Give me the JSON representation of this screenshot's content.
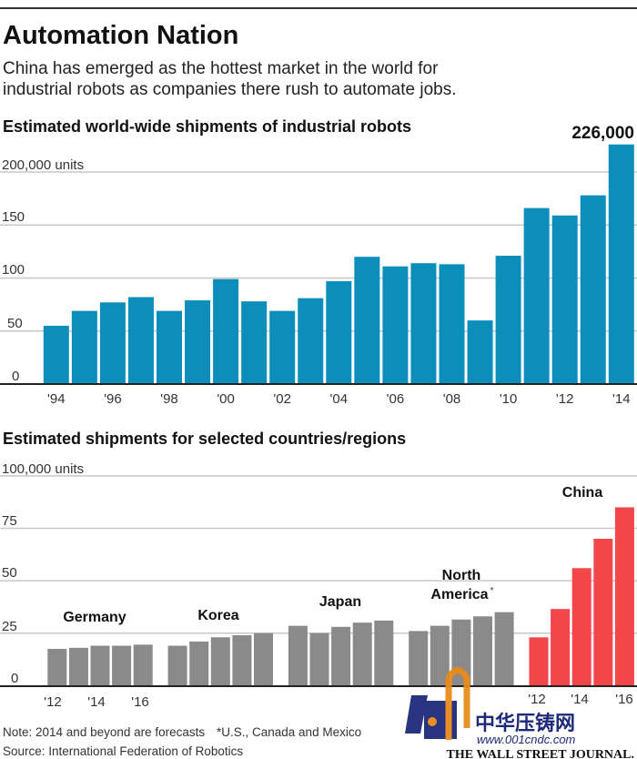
{
  "header": {
    "title": "Automation Nation",
    "subtitle_line1": "China has emerged as the hottest market in the world for",
    "subtitle_line2": "industrial robots as companies there rush to automate jobs."
  },
  "chart_data": [
    {
      "type": "bar",
      "title": "Estimated world-wide shipments of industrial robots",
      "ylabel": "200,000 units",
      "ylim": [
        0,
        226
      ],
      "yticks": [
        "0",
        "50",
        "100",
        "150"
      ],
      "ytick_values": [
        0,
        50,
        100,
        150,
        200
      ],
      "x": [
        "1994",
        "1995",
        "1996",
        "1997",
        "1998",
        "1999",
        "2000",
        "2001",
        "2002",
        "2003",
        "2004",
        "2005",
        "2006",
        "2007",
        "2008",
        "2009",
        "2010",
        "2011",
        "2012",
        "2013",
        "2014"
      ],
      "xtick_labels": [
        "'94",
        "'96",
        "'98",
        "'00",
        "'02",
        "'04",
        "'06",
        "'08",
        "'10",
        "'12",
        "'14"
      ],
      "values": [
        55,
        69,
        77,
        82,
        69,
        79,
        99,
        78,
        69,
        81,
        97,
        120,
        111,
        114,
        113,
        60,
        121,
        166,
        159,
        178,
        226
      ],
      "units": "thousand units",
      "annotation": "226,000",
      "color": "#0b8fba",
      "grid": true
    },
    {
      "type": "bar",
      "title": "Estimated shipments for selected countries/regions",
      "ylabel": "100,000 units",
      "ylim": [
        0,
        100
      ],
      "yticks": [
        "0",
        "25",
        "50",
        "75"
      ],
      "ytick_values": [
        0,
        25,
        50,
        75,
        100
      ],
      "x": [
        "2012",
        "2013",
        "2014",
        "2015",
        "2016"
      ],
      "xtick_labels": [
        "'12",
        "'14",
        "'16"
      ],
      "units": "thousand units",
      "series": [
        {
          "name": "Germany",
          "values": [
            17.5,
            18,
            19,
            19,
            19.5
          ],
          "color": "#8a8a8a"
        },
        {
          "name": "Korea",
          "values": [
            19,
            21,
            23,
            24,
            25
          ],
          "color": "#8a8a8a"
        },
        {
          "name": "Japan",
          "values": [
            28.5,
            25,
            28,
            30,
            31
          ],
          "color": "#8a8a8a"
        },
        {
          "name": "North America*",
          "name_line1": "North",
          "name_line2": "America",
          "asterisk": "*",
          "values": [
            26,
            28.5,
            31.5,
            33,
            35
          ],
          "color": "#8a8a8a"
        },
        {
          "name": "China",
          "values": [
            23,
            36.5,
            56,
            70,
            85
          ],
          "color": "#f2464b"
        }
      ],
      "grid": true
    }
  ],
  "footer": {
    "note": "Note: 2014 and beyond are forecasts",
    "footnote": "*U.S., Canada and Mexico",
    "source": "Source: International Federation of Robotics",
    "publisher": "THE WALL STREET JOURNAL.",
    "watermark_chinese": "中华压铸网",
    "watermark_url": "www.001cndc.com"
  }
}
